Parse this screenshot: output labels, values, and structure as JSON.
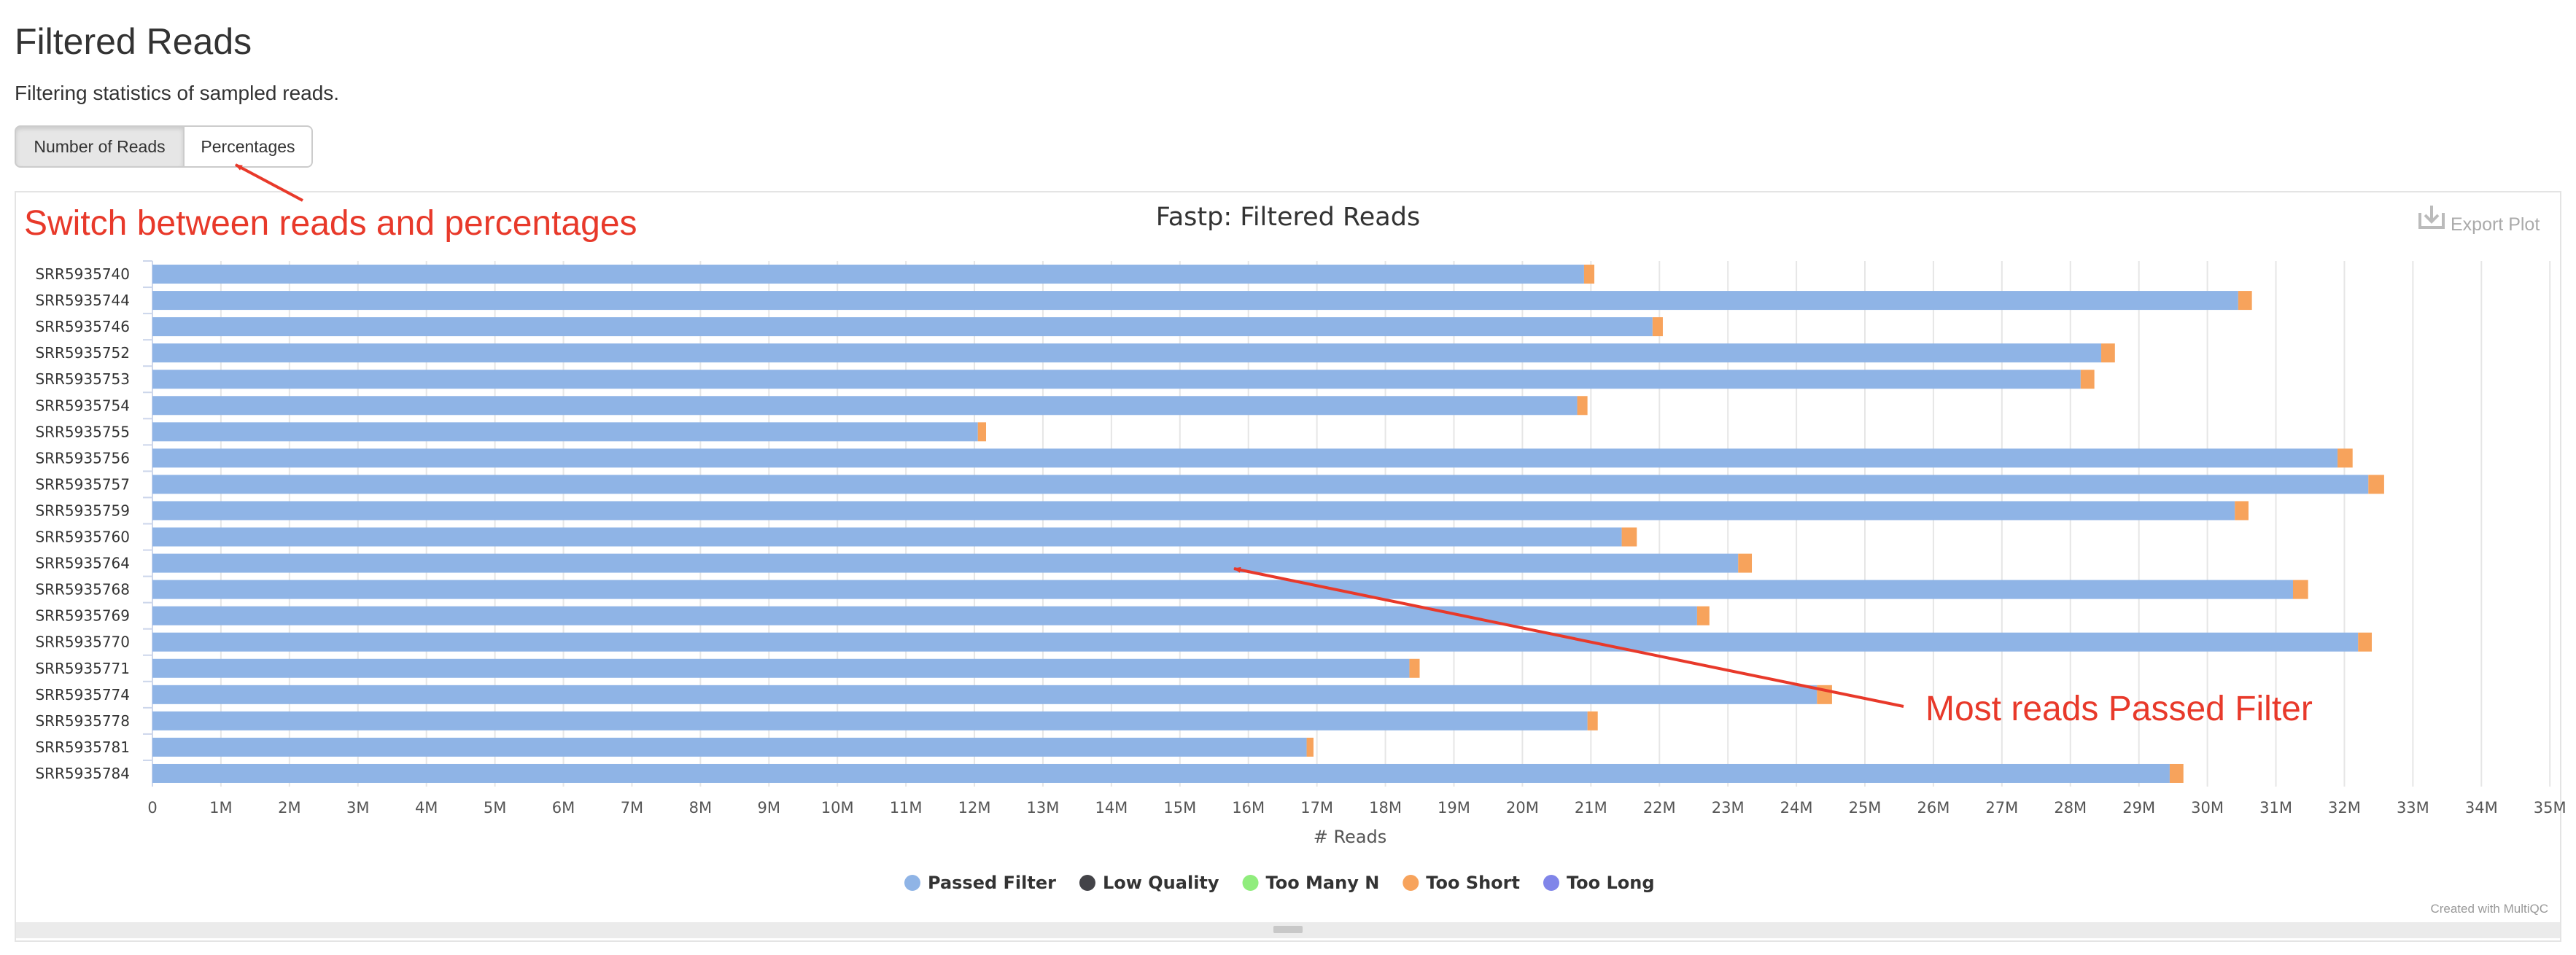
{
  "header": {
    "title": "Filtered Reads",
    "subtitle": "Filtering statistics of sampled reads."
  },
  "toggle": {
    "reads_label": "Number of Reads",
    "percent_label": "Percentages",
    "active": "Number of Reads"
  },
  "plot": {
    "export_label": "Export Plot",
    "credit": "Created with MultiQC"
  },
  "annotations": {
    "switch_note": "Switch between reads and percentages",
    "passed_note": "Most reads Passed Filter",
    "color": "#e8392a"
  },
  "chart_data": {
    "type": "bar",
    "orientation": "horizontal",
    "stacked": true,
    "title": "Fastp: Filtered Reads",
    "xlabel": "# Reads",
    "ylabel": "",
    "xlim": [
      0,
      35000000
    ],
    "x_ticks": [
      "0",
      "1M",
      "2M",
      "3M",
      "4M",
      "5M",
      "6M",
      "7M",
      "8M",
      "9M",
      "10M",
      "11M",
      "12M",
      "13M",
      "14M",
      "15M",
      "16M",
      "17M",
      "18M",
      "19M",
      "20M",
      "21M",
      "22M",
      "23M",
      "24M",
      "25M",
      "26M",
      "27M",
      "28M",
      "29M",
      "30M",
      "31M",
      "32M",
      "33M",
      "34M",
      "35M"
    ],
    "grid": true,
    "legend_position": "bottom",
    "categories": [
      "SRR5935740",
      "SRR5935744",
      "SRR5935746",
      "SRR5935752",
      "SRR5935753",
      "SRR5935754",
      "SRR5935755",
      "SRR5935756",
      "SRR5935757",
      "SRR5935759",
      "SRR5935760",
      "SRR5935764",
      "SRR5935768",
      "SRR5935769",
      "SRR5935770",
      "SRR5935771",
      "SRR5935774",
      "SRR5935778",
      "SRR5935781",
      "SRR5935784"
    ],
    "series": [
      {
        "name": "Passed Filter",
        "color": "#8fb4e6",
        "values": [
          20900000,
          30450000,
          21900000,
          28450000,
          28150000,
          20800000,
          12050000,
          31900000,
          32350000,
          30400000,
          21450000,
          23150000,
          31250000,
          22550000,
          32200000,
          18350000,
          24300000,
          20950000,
          16850000,
          29450000
        ]
      },
      {
        "name": "Low Quality",
        "color": "#434348",
        "values": [
          0,
          0,
          0,
          0,
          0,
          0,
          0,
          0,
          0,
          0,
          0,
          0,
          0,
          0,
          0,
          0,
          0,
          0,
          0,
          0
        ]
      },
      {
        "name": "Too Many N",
        "color": "#90ed7d",
        "values": [
          0,
          0,
          0,
          0,
          0,
          0,
          0,
          0,
          0,
          0,
          0,
          0,
          0,
          0,
          0,
          0,
          0,
          0,
          0,
          0
        ]
      },
      {
        "name": "Too Short",
        "color": "#f7a35c",
        "values": [
          150000,
          200000,
          150000,
          200000,
          200000,
          150000,
          120000,
          220000,
          230000,
          200000,
          220000,
          200000,
          220000,
          180000,
          200000,
          150000,
          220000,
          150000,
          100000,
          200000
        ]
      },
      {
        "name": "Too Long",
        "color": "#8085e9",
        "values": [
          0,
          0,
          0,
          0,
          0,
          0,
          0,
          0,
          0,
          0,
          0,
          0,
          0,
          0,
          0,
          0,
          0,
          0,
          0,
          0
        ]
      }
    ]
  }
}
